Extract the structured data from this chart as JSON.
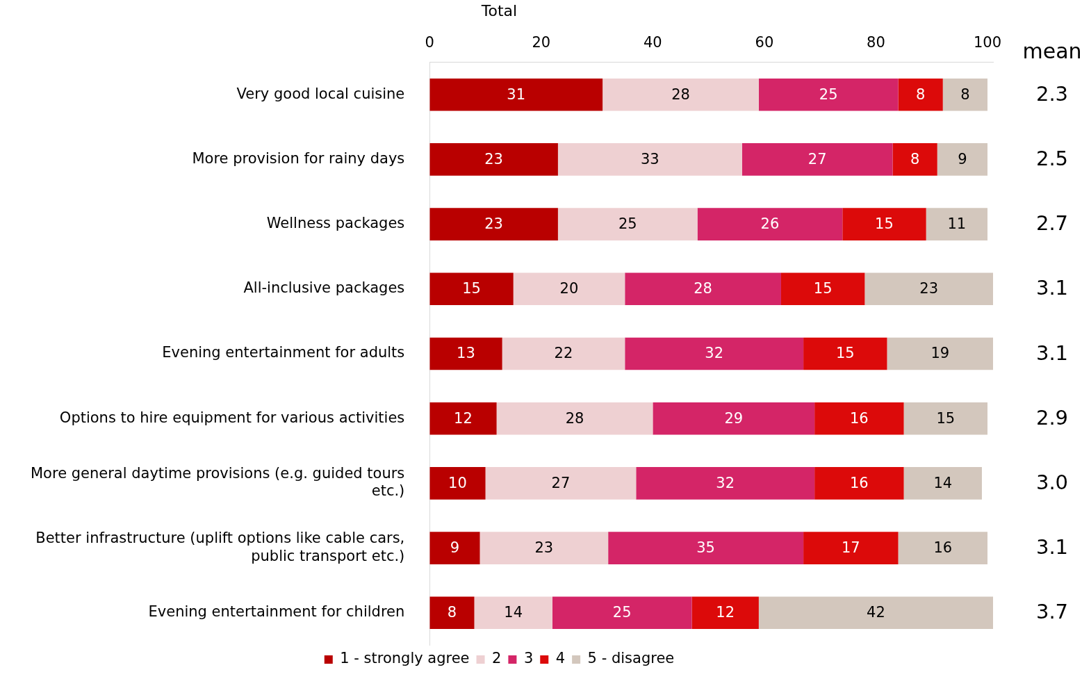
{
  "chart_data": {
    "type": "bar",
    "orientation": "horizontal",
    "stacked": true,
    "title": "Total",
    "categories": [
      "Very good local cuisine",
      "More provision for rainy days",
      "Wellness packages",
      "All-inclusive packages",
      "Evening entertainment for adults",
      "Options to hire equipment for various activities",
      "More general daytime provisions (e.g. guided tours etc.)",
      "Better infrastructure (uplift options like cable cars, public transport etc.)",
      "Evening entertainment for children"
    ],
    "series": [
      {
        "name": "1 - strongly agree",
        "color": "#b90000",
        "values": [
          31,
          23,
          23,
          15,
          13,
          12,
          10,
          9,
          8
        ]
      },
      {
        "name": "2",
        "color": "#eed0d2",
        "values": [
          28,
          33,
          25,
          20,
          22,
          28,
          27,
          23,
          14
        ]
      },
      {
        "name": "3",
        "color": "#d42567",
        "values": [
          25,
          27,
          26,
          28,
          32,
          29,
          32,
          35,
          25
        ]
      },
      {
        "name": "4",
        "color": "#dc0a0a",
        "values": [
          8,
          8,
          15,
          15,
          15,
          16,
          16,
          17,
          12
        ]
      },
      {
        "name": "5 - disagree",
        "color": "#d3c7bd",
        "values": [
          8,
          9,
          11,
          23,
          19,
          15,
          14,
          16,
          42
        ]
      }
    ],
    "xlim": [
      0,
      101
    ],
    "xticks": [
      0,
      20,
      40,
      60,
      80,
      100
    ],
    "data_labels": true,
    "grid": false,
    "legend": "bottom",
    "annotations": [
      "mean",
      "2.3",
      "2.5",
      "2.7",
      "3.1",
      "3.1",
      "2.9",
      "3.0",
      "3.1",
      "3.7"
    ]
  }
}
